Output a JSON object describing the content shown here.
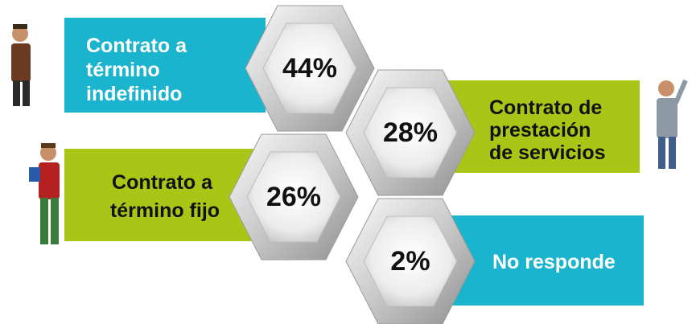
{
  "items": [
    {
      "label_lines": [
        "Contrato a",
        "término",
        "indefinido"
      ],
      "percent": "44%"
    },
    {
      "label_lines": [
        "Contrato de",
        "prestación",
        "de servicios"
      ],
      "percent": "28%"
    },
    {
      "label_lines": [
        "Contrato a",
        "término fijo"
      ],
      "percent": "26%"
    },
    {
      "label_lines": [
        "No responde"
      ],
      "percent": "2%"
    }
  ]
}
